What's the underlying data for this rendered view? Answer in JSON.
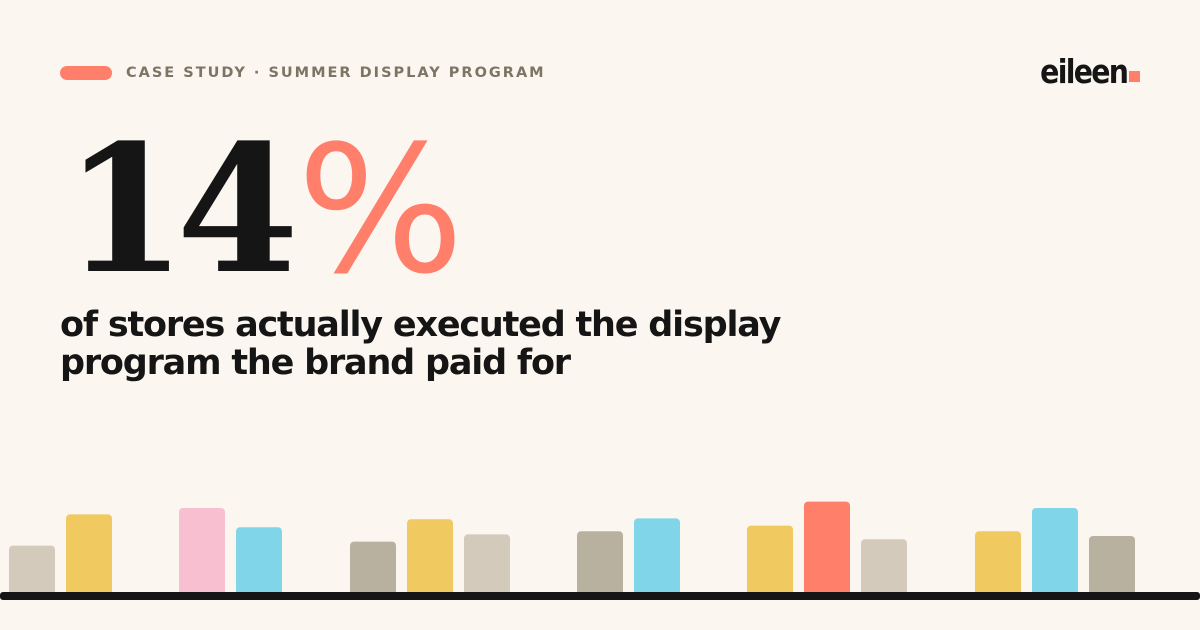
{
  "header": {
    "eyebrow": "CASE STUDY · SUMMER DISPLAY PROGRAM"
  },
  "brand": {
    "logo_text": "eileen"
  },
  "stat": {
    "value": "14",
    "unit": "%"
  },
  "subtitle": "of stores actually executed the display program the brand paid for",
  "colors": {
    "background": "#FBF6F0",
    "accent": "#FF7F6B",
    "text": "#151515",
    "muted": "#7B7565"
  },
  "decorative_bars": {
    "groups": [
      {
        "bars": [
          {
            "level": 0.58,
            "color": "#D3CABC"
          },
          {
            "level": 0.97,
            "color": "#F0CA60"
          }
        ]
      },
      {
        "bars": [
          {
            "level": 1.05,
            "color": "#F7BFCF"
          },
          {
            "level": 0.81,
            "color": "#80D6E8"
          }
        ]
      },
      {
        "bars": [
          {
            "level": 0.63,
            "color": "#B9B1A0"
          },
          {
            "level": 0.91,
            "color": "#F0CA60"
          },
          {
            "level": 0.72,
            "color": "#D3CABC"
          }
        ]
      },
      {
        "bars": [
          {
            "level": 0.76,
            "color": "#B9B1A0"
          },
          {
            "level": 0.92,
            "color": "#80D6E8"
          }
        ]
      },
      {
        "bars": [
          {
            "level": 0.83,
            "color": "#F0CA60"
          },
          {
            "level": 1.13,
            "color": "#FF7F6B"
          },
          {
            "level": 0.66,
            "color": "#D3CABC"
          }
        ]
      },
      {
        "bars": [
          {
            "level": 0.76,
            "color": "#F0CA60"
          },
          {
            "level": 1.05,
            "color": "#80D6E8"
          },
          {
            "level": 0.7,
            "color": "#B9B1A0"
          }
        ]
      }
    ],
    "baseline_color": "#151515"
  }
}
